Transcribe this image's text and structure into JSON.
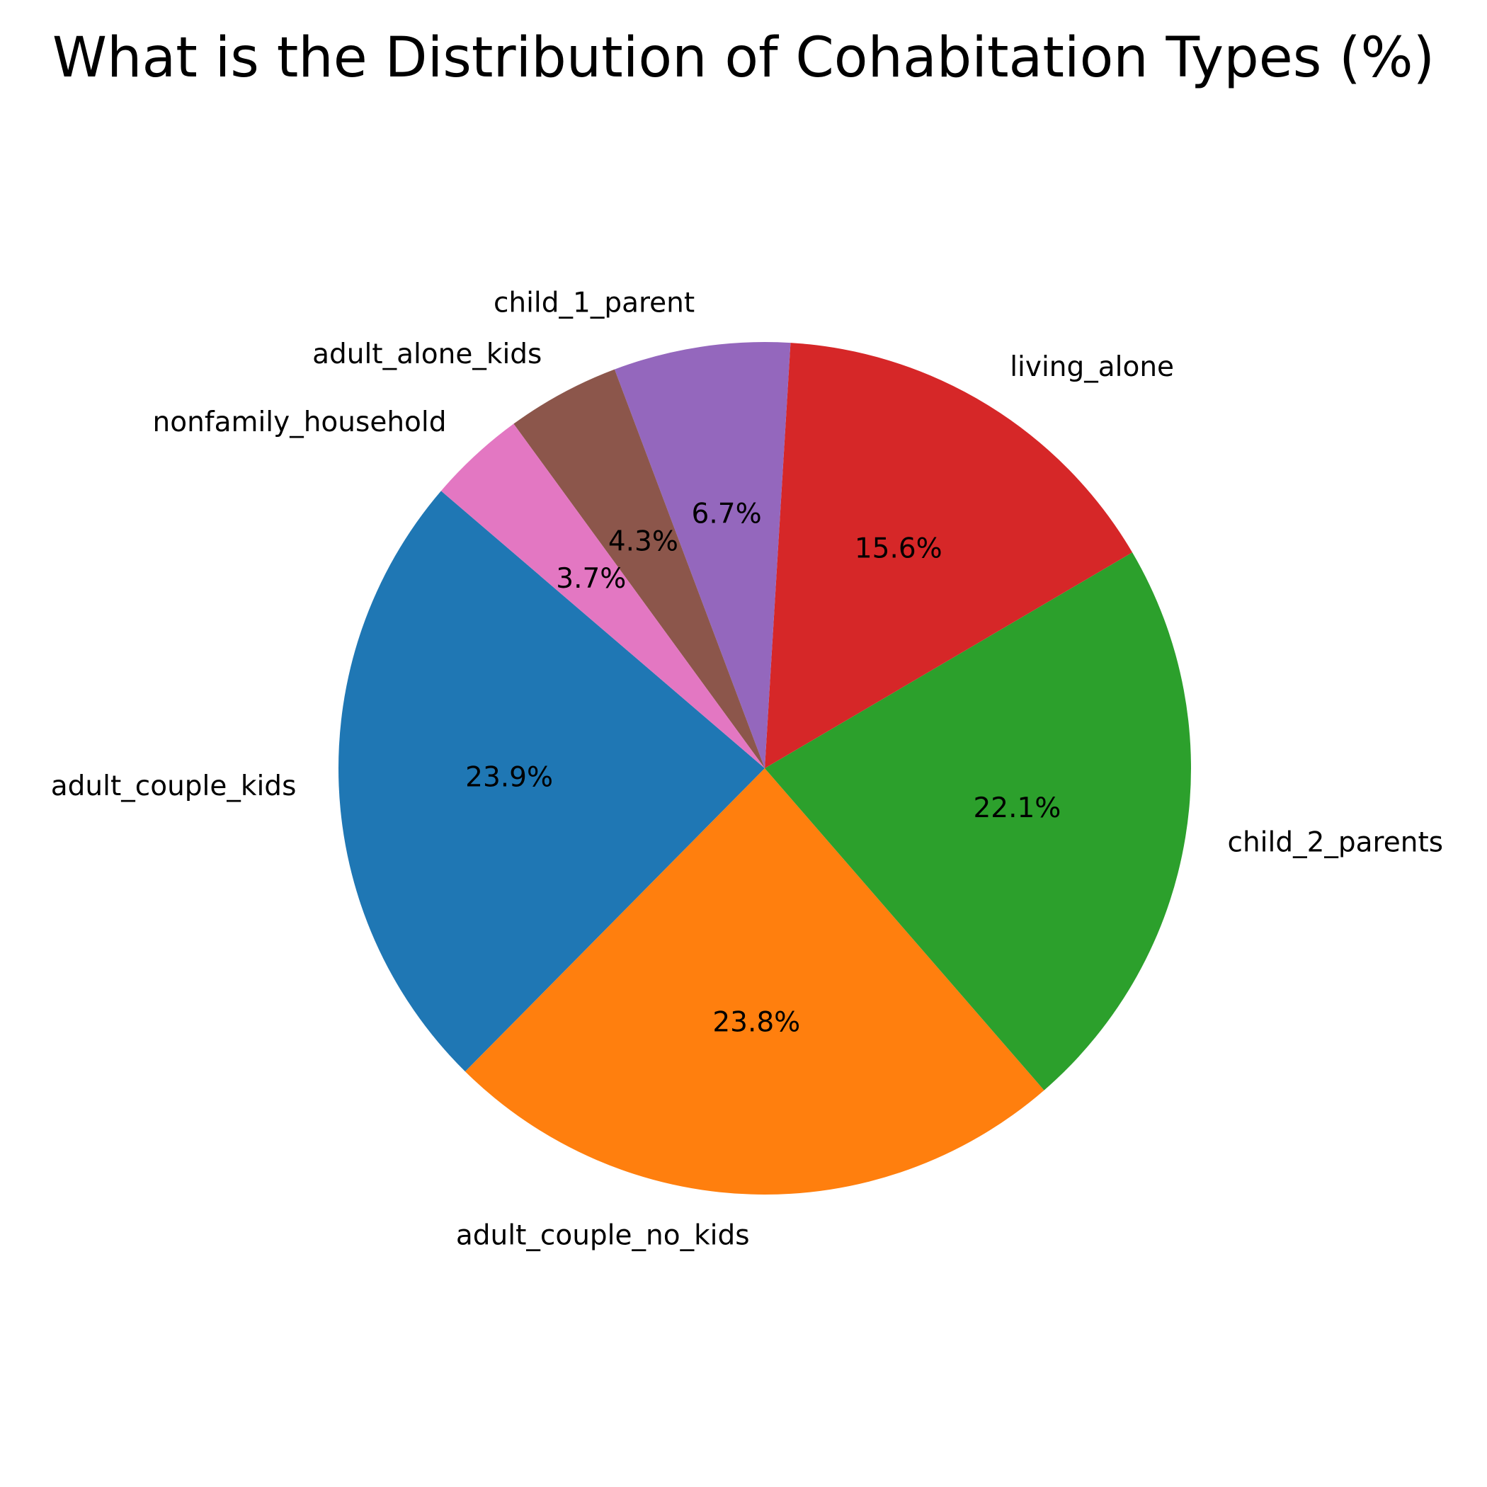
{
  "chart_data": {
    "type": "pie",
    "title": "What is the Distribution of Cohabitation Types (%)",
    "start_angle_deg": 139.4,
    "direction": "counterclockwise",
    "slices": [
      {
        "label": "adult_couple_kids",
        "value": 23.9,
        "pct_label": "23.9%",
        "color": "#1f77b4"
      },
      {
        "label": "adult_couple_no_kids",
        "value": 23.8,
        "pct_label": "23.8%",
        "color": "#ff7f0e"
      },
      {
        "label": "child_2_parents",
        "value": 22.1,
        "pct_label": "22.1%",
        "color": "#2ca02c"
      },
      {
        "label": "living_alone",
        "value": 15.6,
        "pct_label": "15.6%",
        "color": "#d62728"
      },
      {
        "label": "child_1_parent",
        "value": 6.7,
        "pct_label": "6.7%",
        "color": "#9467bd"
      },
      {
        "label": "adult_alone_kids",
        "value": 4.3,
        "pct_label": "4.3%",
        "color": "#8c564b"
      },
      {
        "label": "nonfamily_household",
        "value": 3.7,
        "pct_label": "3.7%",
        "color": "#e377c2"
      }
    ]
  }
}
